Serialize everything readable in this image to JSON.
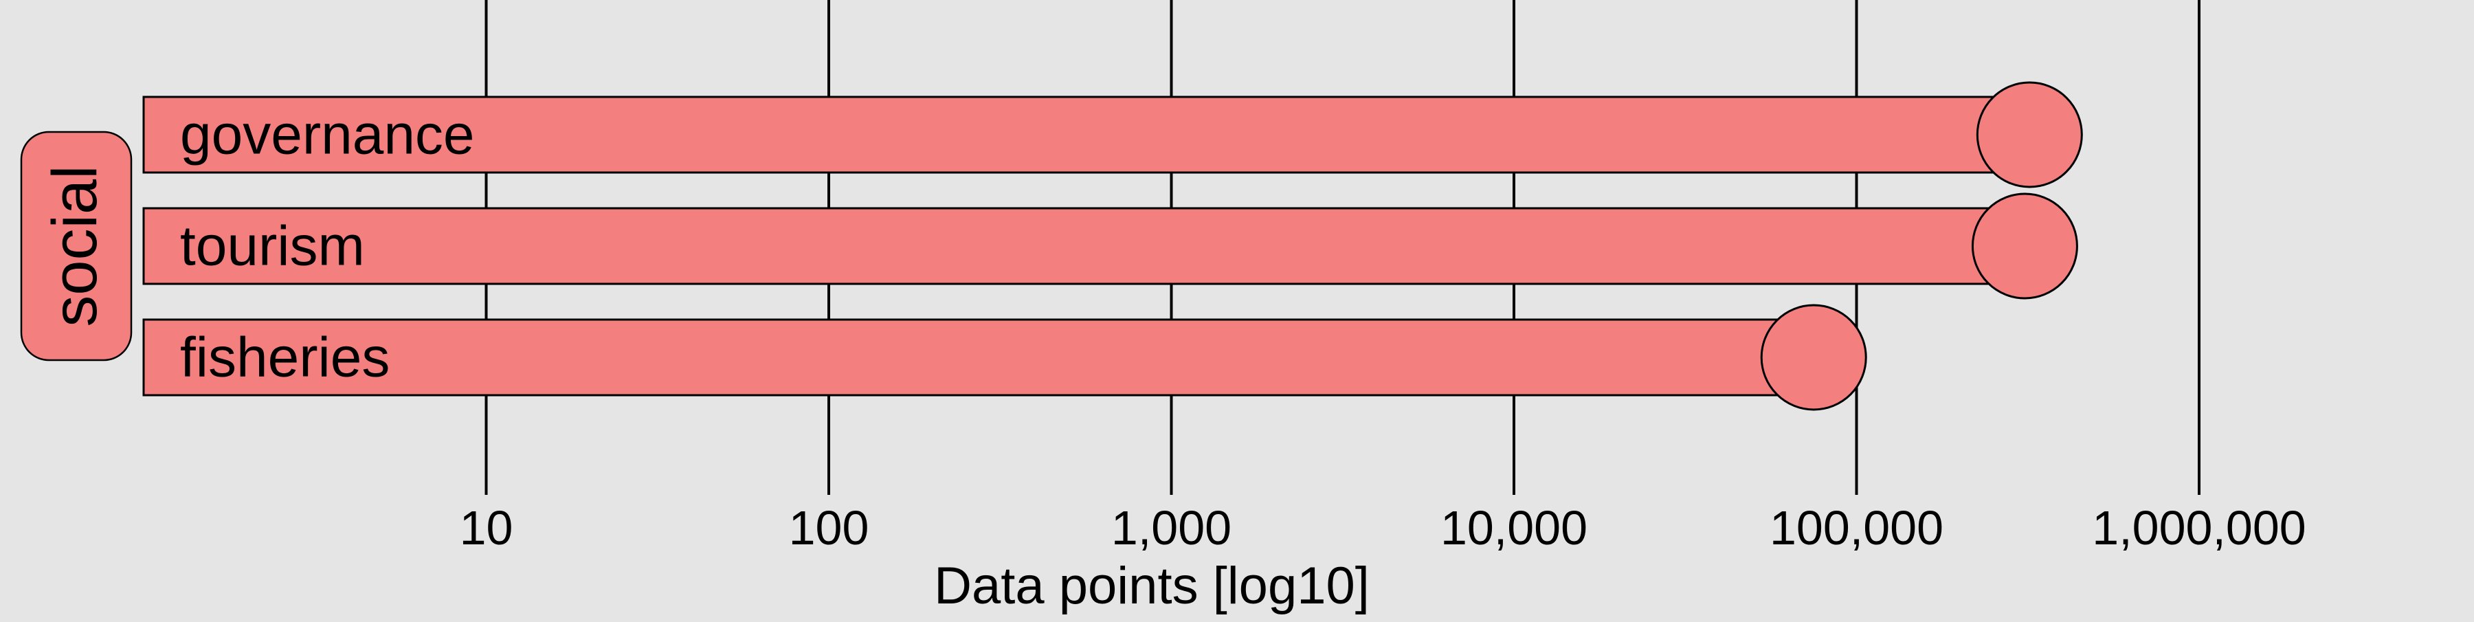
{
  "chart_data": {
    "type": "bar",
    "orientation": "horizontal",
    "scale": "log10",
    "facet_label": "social",
    "categories": [
      "governance",
      "tourism",
      "fisheries"
    ],
    "values": [
      320000,
      310000,
      75000
    ],
    "xlabel": "Data points [log10]",
    "tick_values": [
      10,
      100,
      1000,
      10000,
      100000,
      1000000
    ],
    "tick_labels": [
      "10",
      "100",
      "1,000",
      "10,000",
      "100,000",
      "1,000,000"
    ],
    "xlim": [
      1,
      10000000
    ],
    "grid": true,
    "legend": "none",
    "colors": {
      "bar_fill": "#f47f7f",
      "stroke": "#000000",
      "background": "#e5e5e5",
      "grid": "#000000"
    }
  }
}
